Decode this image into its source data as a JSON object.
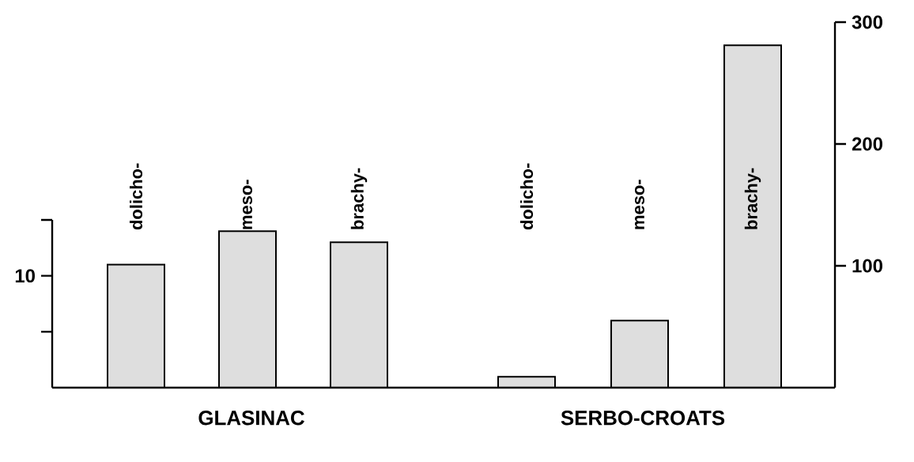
{
  "chart_data": [
    {
      "type": "bar",
      "categories": [
        "dolicho-",
        "meso-",
        "brachy-"
      ],
      "xlabel": "GLASINAC",
      "ylim": [
        0,
        15
      ],
      "yticks": [
        {
          "value": 5,
          "label": null
        },
        10,
        {
          "value": 15,
          "label": null
        }
      ],
      "series": [
        {
          "values": [
            11,
            14,
            13
          ],
          "color": "#dedede"
        }
      ]
    },
    {
      "type": "bar",
      "categories": [
        "dolicho-",
        "meso-",
        "brachy-"
      ],
      "xlabel": "SERBO-CROATS",
      "y2lim": [
        0,
        300
      ],
      "y2ticks": [
        100,
        200,
        300
      ],
      "series": [
        {
          "values": [
            9,
            55,
            281
          ],
          "color": "#dedede",
          "axis": "y2"
        }
      ]
    }
  ]
}
